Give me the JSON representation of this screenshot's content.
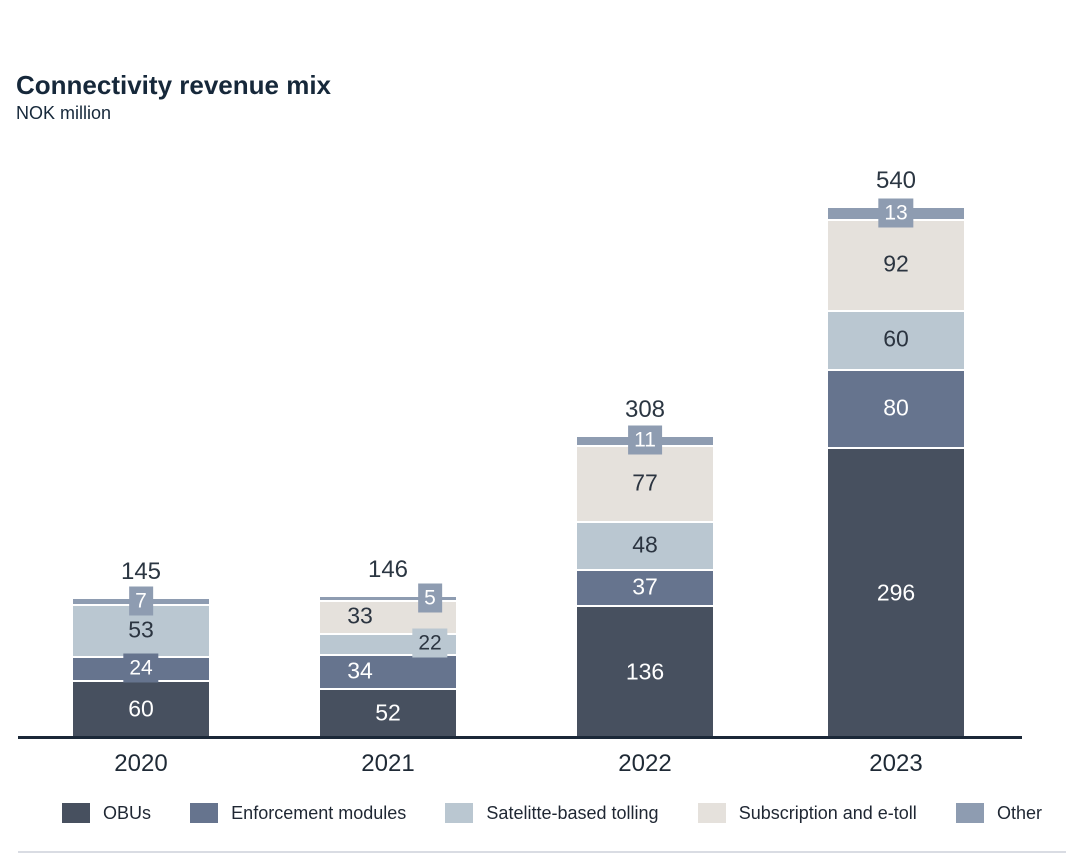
{
  "title": "Connectivity revenue mix",
  "subtitle": "NOK million",
  "colors": {
    "obus": "#47505F",
    "enforcement_modules": "#66748E",
    "satellite_based_tolling": "#BAC7D1",
    "subscription_and_etoll": "#E5E1DC",
    "other": "#8E9CB1",
    "axis_line": "#1B2838",
    "total_label_text": "#2B3642",
    "dark_label_text": "#2B3440",
    "light_label_text": "#FFFFFF",
    "title_text": "#16283A",
    "divider": "#D9DCE3",
    "background": "#FFFFFF"
  },
  "chart_data": {
    "type": "bar",
    "stacked": true,
    "title": "Connectivity revenue mix",
    "subtitle": "NOK million",
    "unit": "NOK million",
    "grid": false,
    "legend_position": "bottom",
    "categories": [
      "2020",
      "2021",
      "2022",
      "2023"
    ],
    "totals": [
      "145",
      "146",
      "308",
      "540"
    ],
    "series": [
      {
        "name": "OBUs",
        "color": "#47505F",
        "text_color": "#FFFFFF",
        "values": [
          60,
          52,
          136,
          296
        ],
        "labels": [
          "60",
          "52",
          "136",
          "296"
        ],
        "label_modes": [
          "inline",
          "inline",
          "inline",
          "inline"
        ],
        "label_dx": [
          0,
          0,
          0,
          0
        ]
      },
      {
        "name": "Enforcement modules",
        "color": "#66748E",
        "text_color": "#FFFFFF",
        "values": [
          24,
          34,
          37,
          80
        ],
        "labels": [
          "24",
          "34",
          "37",
          "80"
        ],
        "label_modes": [
          "tag",
          "inline",
          "inline",
          "inline"
        ],
        "label_dx": [
          0,
          -28,
          0,
          0
        ]
      },
      {
        "name": "Satelitte-based tolling",
        "color": "#BAC7D1",
        "text_color": "#2B3440",
        "values": [
          53,
          22,
          48,
          60
        ],
        "labels": [
          "53",
          "22",
          "48",
          "60"
        ],
        "label_modes": [
          "inline",
          "tag",
          "inline",
          "inline"
        ],
        "label_dx": [
          0,
          42,
          0,
          0
        ]
      },
      {
        "name": "Subscription and e-toll",
        "color": "#E5E1DC",
        "text_color": "#2B3440",
        "values": [
          null,
          33,
          77,
          92
        ],
        "labels": [
          "",
          "33",
          "77",
          "92"
        ],
        "label_modes": [
          "none",
          "inline",
          "inline",
          "inline"
        ],
        "label_dx": [
          0,
          -28,
          0,
          0
        ]
      },
      {
        "name": "Other",
        "color": "#8E9CB1",
        "text_color": "#FFFFFF",
        "values": [
          7,
          5,
          11,
          13
        ],
        "labels": [
          "7",
          "5",
          "11",
          "13"
        ],
        "label_modes": [
          "tag",
          "tag",
          "tag",
          "tag"
        ],
        "label_dx": [
          0,
          42,
          0,
          0
        ]
      }
    ],
    "legend": [
      "OBUs",
      "Enforcement modules",
      "Satelitte-based tolling",
      "Subscription and e-toll",
      "Other"
    ]
  }
}
